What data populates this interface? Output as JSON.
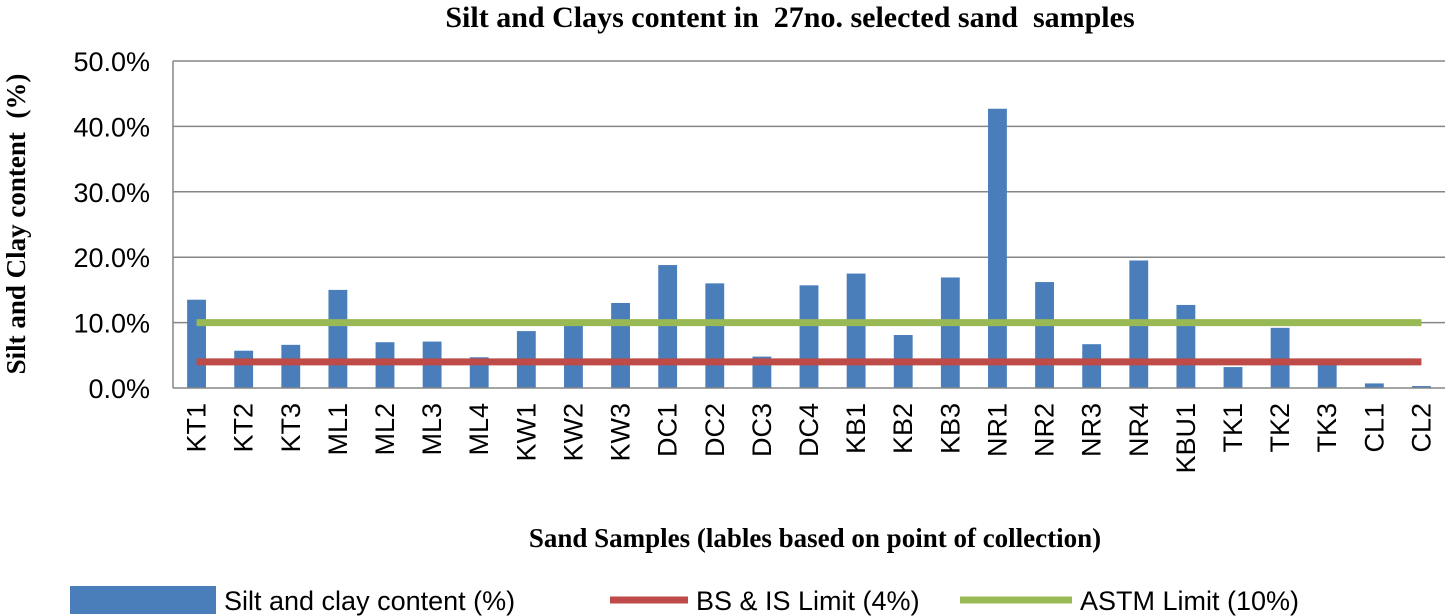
{
  "chart_data": {
    "type": "bar",
    "title": "Silt and Clays content in  27no. selected sand  samples",
    "xlabel": "Sand Samples (lables based on point of collection)",
    "ylabel": "Silt and Clay content  (%)",
    "ylim": [
      0,
      0.5
    ],
    "yticks": [
      0,
      0.1,
      0.2,
      0.3,
      0.4,
      0.5
    ],
    "ytick_labels": [
      "0.0%",
      "10.0%",
      "20.0%",
      "30.0%",
      "40.0%",
      "50.0%"
    ],
    "grid": true,
    "legend_position": "bottom",
    "categories": [
      "KT1",
      "KT2",
      "KT3",
      "ML1",
      "ML2",
      "ML3",
      "ML4",
      "KW1",
      "KW2",
      "KW3",
      "DC1",
      "DC2",
      "DC3",
      "DC4",
      "KB1",
      "KB2",
      "KB3",
      "NR1",
      "NR2",
      "NR3",
      "NR4",
      "KBU1",
      "TK1",
      "TK2",
      "TK3",
      "CL1",
      "CL2"
    ],
    "series": [
      {
        "name": "Silt and clay content (%)",
        "kind": "bar",
        "color": "#4a7ebb",
        "values": [
          0.135,
          0.057,
          0.066,
          0.15,
          0.07,
          0.071,
          0.047,
          0.087,
          0.095,
          0.13,
          0.188,
          0.16,
          0.048,
          0.157,
          0.175,
          0.081,
          0.169,
          0.427,
          0.162,
          0.067,
          0.195,
          0.127,
          0.032,
          0.092,
          0.039,
          0.007,
          0.003
        ]
      },
      {
        "name": "BS & IS Limit (4%)",
        "kind": "line",
        "color": "#be4b48",
        "value": 0.04
      },
      {
        "name": "ASTM Limit (10%)",
        "kind": "line",
        "color": "#98b954",
        "value": 0.1
      }
    ]
  }
}
